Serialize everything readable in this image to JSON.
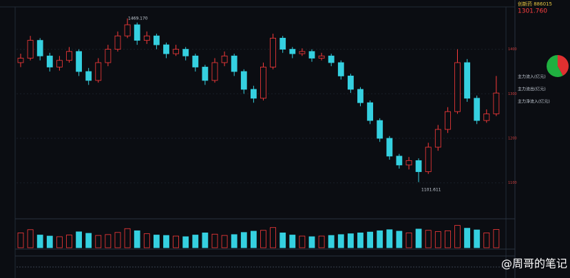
{
  "header": {
    "name": "创新药 886015",
    "price": "1301.760"
  },
  "annotations": {
    "high": "1469.170",
    "low": "1101.611"
  },
  "kline": {
    "ylim": [
      1047,
      1489
    ],
    "yticks": [
      1100,
      1200,
      1300,
      1400
    ],
    "candles": [
      [
        1370,
        1390,
        1360,
        1380
      ],
      [
        1380,
        1430,
        1375,
        1420
      ],
      [
        1420,
        1425,
        1375,
        1385
      ],
      [
        1385,
        1392,
        1350,
        1360
      ],
      [
        1360,
        1385,
        1352,
        1375
      ],
      [
        1375,
        1405,
        1370,
        1395
      ],
      [
        1395,
        1400,
        1340,
        1350
      ],
      [
        1350,
        1358,
        1320,
        1330
      ],
      [
        1330,
        1380,
        1325,
        1370
      ],
      [
        1370,
        1410,
        1362,
        1400
      ],
      [
        1400,
        1440,
        1395,
        1430
      ],
      [
        1430,
        1469.17,
        1425,
        1455
      ],
      [
        1455,
        1460,
        1410,
        1420
      ],
      [
        1420,
        1440,
        1412,
        1430
      ],
      [
        1430,
        1435,
        1400,
        1410
      ],
      [
        1410,
        1415,
        1380,
        1390
      ],
      [
        1390,
        1410,
        1385,
        1400
      ],
      [
        1400,
        1405,
        1375,
        1385
      ],
      [
        1385,
        1390,
        1350,
        1360
      ],
      [
        1360,
        1365,
        1320,
        1330
      ],
      [
        1330,
        1380,
        1325,
        1370
      ],
      [
        1370,
        1395,
        1362,
        1385
      ],
      [
        1385,
        1390,
        1340,
        1350
      ],
      [
        1350,
        1355,
        1300,
        1310
      ],
      [
        1310,
        1318,
        1280,
        1290
      ],
      [
        1290,
        1370,
        1285,
        1360
      ],
      [
        1360,
        1435,
        1355,
        1425
      ],
      [
        1425,
        1430,
        1392,
        1400
      ],
      [
        1400,
        1405,
        1380,
        1390
      ],
      [
        1390,
        1402,
        1385,
        1395
      ],
      [
        1395,
        1400,
        1372,
        1380
      ],
      [
        1380,
        1392,
        1375,
        1385
      ],
      [
        1385,
        1390,
        1362,
        1370
      ],
      [
        1370,
        1375,
        1332,
        1340
      ],
      [
        1340,
        1345,
        1302,
        1310
      ],
      [
        1310,
        1315,
        1272,
        1280
      ],
      [
        1280,
        1285,
        1232,
        1240
      ],
      [
        1240,
        1245,
        1192,
        1200
      ],
      [
        1200,
        1205,
        1152,
        1160
      ],
      [
        1160,
        1165,
        1132,
        1140
      ],
      [
        1140,
        1158,
        1130,
        1150
      ],
      [
        1150,
        1155,
        1101.611,
        1125
      ],
      [
        1125,
        1190,
        1120,
        1180
      ],
      [
        1180,
        1230,
        1172,
        1220
      ],
      [
        1220,
        1270,
        1212,
        1260
      ],
      [
        1260,
        1400,
        1255,
        1370
      ],
      [
        1370,
        1378,
        1282,
        1290
      ],
      [
        1290,
        1296,
        1232,
        1240
      ],
      [
        1240,
        1265,
        1235,
        1255
      ],
      [
        1255,
        1340,
        1250,
        1301.76
      ]
    ],
    "volume_lim": [
      0,
      120
    ],
    "volumes": [
      70,
      85,
      60,
      55,
      52,
      60,
      75,
      68,
      58,
      62,
      72,
      90,
      80,
      66,
      60,
      58,
      55,
      52,
      60,
      70,
      64,
      58,
      62,
      72,
      78,
      82,
      95,
      70,
      60,
      55,
      52,
      55,
      58,
      62,
      66,
      70,
      74,
      80,
      85,
      78,
      70,
      88,
      82,
      76,
      80,
      105,
      92,
      84,
      70,
      86
    ]
  },
  "flow": {
    "inflow": "主力流入(亿元)",
    "outflow": "主力流出(亿元)",
    "net": "主力净流入(亿元)",
    "pie": [
      42,
      58
    ]
  },
  "watermark": "@周哥的笔记"
}
